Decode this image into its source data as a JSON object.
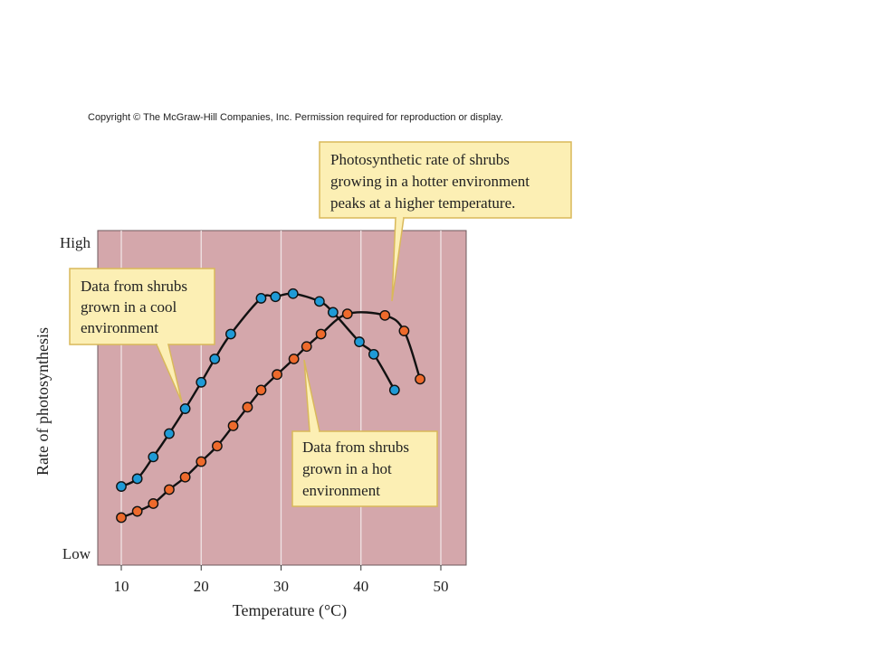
{
  "copyright": "Copyright © The McGraw-Hill Companies, Inc. Permission required for reproduction or display.",
  "chart_data": {
    "type": "scatter",
    "xlabel": "Temperature (°C)",
    "ylabel": "Rate of photosynthesis",
    "x_ticks": [
      10,
      20,
      30,
      40,
      50
    ],
    "xlim": [
      7,
      53
    ],
    "y_tick_labels": {
      "high": "High",
      "low": "Low"
    },
    "ylim": [
      0,
      1
    ],
    "grid": "vertical",
    "colors": {
      "background": "#d4a7ab",
      "grid": "#f0e4e5",
      "cool": "#1f9ad6",
      "hot": "#ee6a2c",
      "callout_fill": "#fcefb4",
      "callout_border": "#d9b85a"
    },
    "series": [
      {
        "key": "cool",
        "x": [
          10,
          12,
          14,
          16,
          18,
          20,
          21.7,
          23.7,
          27.5,
          29.3,
          31.5,
          34.8,
          36.5,
          39.8,
          41.6,
          44.2
        ],
        "y": [
          0.215,
          0.24,
          0.31,
          0.385,
          0.465,
          0.55,
          0.625,
          0.705,
          0.82,
          0.825,
          0.835,
          0.81,
          0.775,
          0.68,
          0.64,
          0.525
        ]
      },
      {
        "key": "hot",
        "x": [
          10,
          12,
          14,
          16,
          18,
          20,
          22,
          24,
          25.8,
          27.5,
          29.5,
          31.6,
          33.2,
          35,
          38.3,
          43,
          45.4,
          47.4
        ],
        "y": [
          0.115,
          0.135,
          0.16,
          0.205,
          0.245,
          0.295,
          0.345,
          0.41,
          0.47,
          0.525,
          0.575,
          0.625,
          0.665,
          0.705,
          0.77,
          0.765,
          0.715,
          0.56
        ]
      }
    ],
    "callouts": [
      {
        "key": "hot-peak",
        "lines": [
          "Photosynthetic rate of shrubs",
          "growing in a hotter environment",
          "peaks at a higher temperature."
        ]
      },
      {
        "key": "cool",
        "lines": [
          "Data from shrubs",
          "grown in a cool",
          "environment"
        ]
      },
      {
        "key": "hot",
        "lines": [
          "Data from shrubs",
          "grown in a hot",
          "environment"
        ]
      }
    ]
  }
}
